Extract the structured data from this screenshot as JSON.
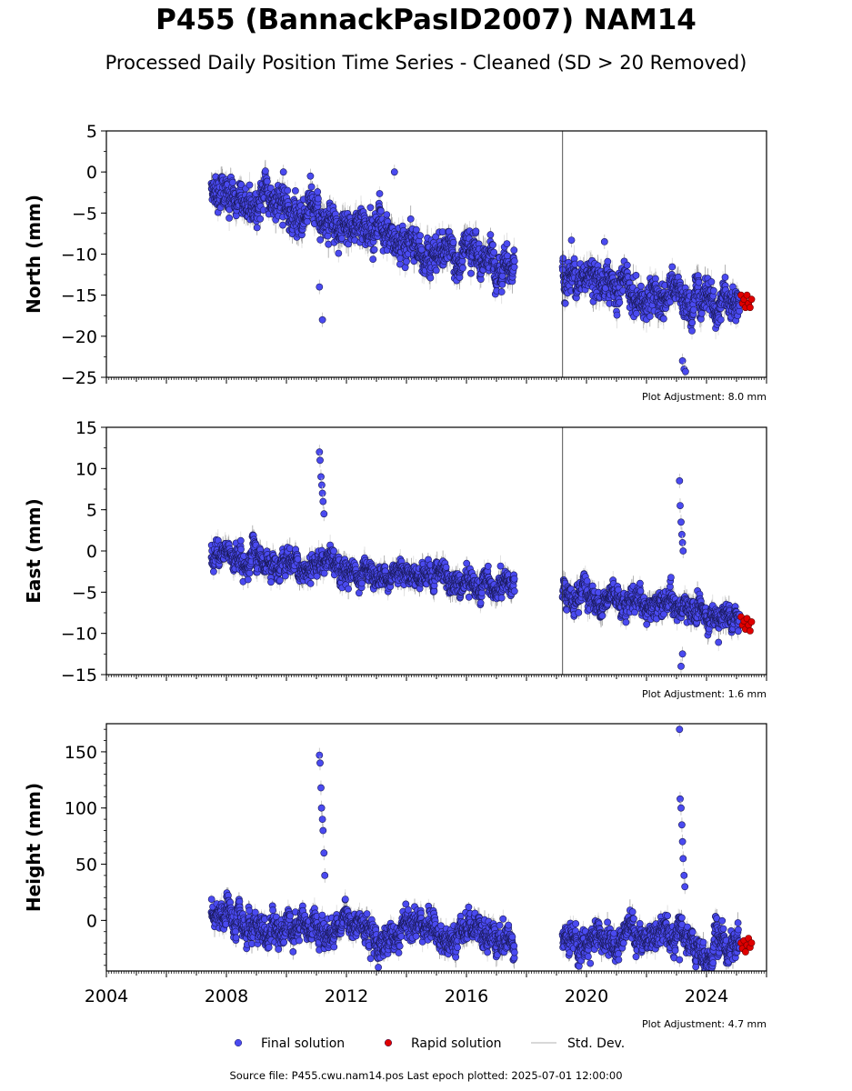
{
  "title": "P455 (BannackPasID2007) NAM14",
  "subtitle": "Processed Daily Position Time Series - Cleaned (SD > 20 Removed)",
  "source_text": "Source file: P455.cwu.nam14.pos  Last epoch plotted: 2025-07-01 12:00:00",
  "legend": [
    {
      "label": "Final solution",
      "color": "#4a4af0",
      "kind": "dot"
    },
    {
      "label": "Rapid solution",
      "color": "#e00000",
      "kind": "dot"
    },
    {
      "label": "Std. Dev.",
      "color": "#cccccc",
      "kind": "line"
    }
  ],
  "chart_data": [
    {
      "type": "scatter",
      "ylabel": "North (mm)",
      "ylim": [
        -25,
        5
      ],
      "yticks": [
        5,
        0,
        -5,
        -10,
        -15,
        -20,
        -25
      ],
      "ytick_labels": [
        "5",
        "0",
        "−5",
        "−10",
        "−15",
        "−20",
        "−25"
      ],
      "xlim": [
        2004.0,
        2026.0
      ],
      "annotation": "Plot Adjustment: 8.0 mm",
      "series": [
        {
          "name": "Final solution",
          "color": "#4a4af0",
          "segments": [
            {
              "x": [
                2007.5,
                2008.0,
                2008.5,
                2009.0,
                2009.5,
                2010.0,
                2010.5,
                2011.0,
                2011.5,
                2012.0,
                2012.5,
                2013.0,
                2013.5,
                2014.0,
                2014.5,
                2015.0,
                2015.5,
                2016.0,
                2016.5,
                2017.0,
                2017.6
              ],
              "y": [
                -2,
                -3.5,
                -3.5,
                -4,
                -4.5,
                -5,
                -5.5,
                -6,
                -6.5,
                -7,
                -6.5,
                -7,
                -7.5,
                -8.5,
                -9,
                -9.5,
                -10,
                -10,
                -11,
                -11,
                -11
              ]
            },
            {
              "x": [
                2019.2,
                2019.5,
                2020.0,
                2020.5,
                2021.0,
                2021.5,
                2022.0,
                2022.5,
                2023.0,
                2023.5,
                2024.0,
                2024.5,
                2025.1
              ],
              "y": [
                -12.5,
                -13,
                -13,
                -13.5,
                -14,
                -14.5,
                -15,
                -15,
                -15,
                -15.5,
                -15.5,
                -16,
                -16
              ]
            }
          ]
        },
        {
          "name": "Rapid solution",
          "color": "#e00000",
          "segments": [
            {
              "x": [
                2025.15,
                2025.2,
                2025.25,
                2025.3,
                2025.35,
                2025.4,
                2025.45,
                2025.5
              ],
              "y": [
                -15,
                -16,
                -15.5,
                -16.5,
                -15,
                -16,
                -16.5,
                -15.5
              ]
            }
          ]
        }
      ],
      "outliers": {
        "x": [
          2011.2,
          2011.1,
          2009.9,
          2010.8,
          2013.6,
          2023.2,
          2023.25,
          2023.3,
          2019.5,
          2020.6
        ],
        "y": [
          -18,
          -14,
          0,
          -0.5,
          0,
          -23,
          -24,
          -24.3,
          -8.3,
          -8.5
        ]
      }
    },
    {
      "type": "scatter",
      "ylabel": "East (mm)",
      "ylim": [
        -15,
        15
      ],
      "yticks": [
        15,
        10,
        5,
        0,
        -5,
        -10,
        -15
      ],
      "ytick_labels": [
        "15",
        "10",
        "5",
        "0",
        "−5",
        "−10",
        "−15"
      ],
      "xlim": [
        2004.0,
        2026.0
      ],
      "annotation": "Plot Adjustment: 1.6 mm",
      "series": [
        {
          "name": "Final solution",
          "color": "#4a4af0",
          "segments": [
            {
              "x": [
                2007.5,
                2008.0,
                2008.5,
                2009.0,
                2009.5,
                2010.0,
                2010.5,
                2011.0,
                2011.5,
                2012.0,
                2012.5,
                2013.0,
                2013.5,
                2014.0,
                2014.5,
                2015.0,
                2015.5,
                2016.0,
                2016.5,
                2017.0,
                2017.6
              ],
              "y": [
                -0.5,
                -0.5,
                -1,
                -1,
                -1.5,
                -1.5,
                -1.5,
                -2,
                -2,
                -2.5,
                -2.5,
                -3,
                -3,
                -3,
                -3.5,
                -3.5,
                -3.5,
                -4,
                -4,
                -4,
                -4.5
              ]
            },
            {
              "x": [
                2019.2,
                2019.5,
                2020.0,
                2020.5,
                2021.0,
                2021.5,
                2022.0,
                2022.5,
                2023.0,
                2023.5,
                2024.0,
                2024.5,
                2025.1
              ],
              "y": [
                -5.5,
                -5.5,
                -5.8,
                -6,
                -6,
                -6.2,
                -6.5,
                -6.5,
                -6.5,
                -7,
                -7.5,
                -8,
                -8.3
              ]
            }
          ]
        },
        {
          "name": "Rapid solution",
          "color": "#e00000",
          "segments": [
            {
              "x": [
                2025.15,
                2025.2,
                2025.25,
                2025.3,
                2025.35,
                2025.4,
                2025.45,
                2025.5
              ],
              "y": [
                -8,
                -9,
                -8.5,
                -9.5,
                -8.2,
                -9,
                -9.7,
                -8.6
              ]
            }
          ]
        }
      ],
      "outliers": {
        "x": [
          2011.1,
          2011.12,
          2011.15,
          2011.18,
          2011.2,
          2011.22,
          2011.25,
          2023.1,
          2023.12,
          2023.15,
          2023.18,
          2023.2,
          2023.22,
          2023.15,
          2023.2
        ],
        "y": [
          12,
          11,
          9,
          8,
          7,
          6,
          4.5,
          8.5,
          5.5,
          3.5,
          2,
          1,
          0,
          -14,
          -12.5
        ]
      }
    },
    {
      "type": "scatter",
      "ylabel": "Height (mm)",
      "ylim": [
        -45,
        175
      ],
      "yticks": [
        150,
        100,
        50,
        0
      ],
      "ytick_labels": [
        "150",
        "100",
        "50",
        "0"
      ],
      "xlim": [
        2004.0,
        2026.0
      ],
      "xticks": [
        2004,
        2008,
        2012,
        2016,
        2020,
        2024
      ],
      "xtick_labels": [
        "2004",
        "2008",
        "2012",
        "2016",
        "2020",
        "2024"
      ],
      "annotation": "Plot Adjustment: 4.7 mm",
      "series": [
        {
          "name": "Final solution",
          "color": "#4a4af0",
          "segments": [
            {
              "x": [
                2007.5,
                2008.0,
                2008.5,
                2009.0,
                2009.5,
                2010.0,
                2010.5,
                2011.0,
                2011.5,
                2012.0,
                2012.5,
                2013.0,
                2013.5,
                2014.0,
                2014.5,
                2015.0,
                2015.5,
                2016.0,
                2016.5,
                2017.0,
                2017.6
              ],
              "y": [
                5,
                0,
                -5,
                -10,
                -15,
                -5,
                0,
                -5,
                -10,
                -5,
                0,
                -10,
                -15,
                -5,
                -10,
                -5,
                -15,
                0,
                -10,
                -15,
                -25
              ]
            },
            {
              "x": [
                2019.2,
                2019.5,
                2020.0,
                2020.5,
                2021.0,
                2021.5,
                2022.0,
                2022.5,
                2023.0,
                2023.5,
                2024.0,
                2024.5,
                2025.1
              ],
              "y": [
                -20,
                -15,
                -25,
                -15,
                -20,
                -10,
                -15,
                -10,
                -5,
                -20,
                -25,
                -20,
                -25
              ]
            }
          ]
        },
        {
          "name": "Rapid solution",
          "color": "#e00000",
          "segments": [
            {
              "x": [
                2025.15,
                2025.2,
                2025.25,
                2025.3,
                2025.35,
                2025.4,
                2025.45,
                2025.5
              ],
              "y": [
                -20,
                -25,
                -18,
                -28,
                -22,
                -16,
                -24,
                -20
              ]
            }
          ]
        }
      ],
      "outliers": {
        "x": [
          2011.1,
          2011.12,
          2011.15,
          2011.17,
          2011.2,
          2011.22,
          2011.25,
          2011.28,
          2023.1,
          2023.12,
          2023.15,
          2023.18,
          2023.2,
          2023.22,
          2023.25,
          2023.28,
          2023.1
        ],
        "y": [
          147,
          140,
          118,
          100,
          90,
          80,
          60,
          40,
          170,
          108,
          100,
          85,
          70,
          55,
          40,
          30,
          -35
        ]
      }
    }
  ]
}
